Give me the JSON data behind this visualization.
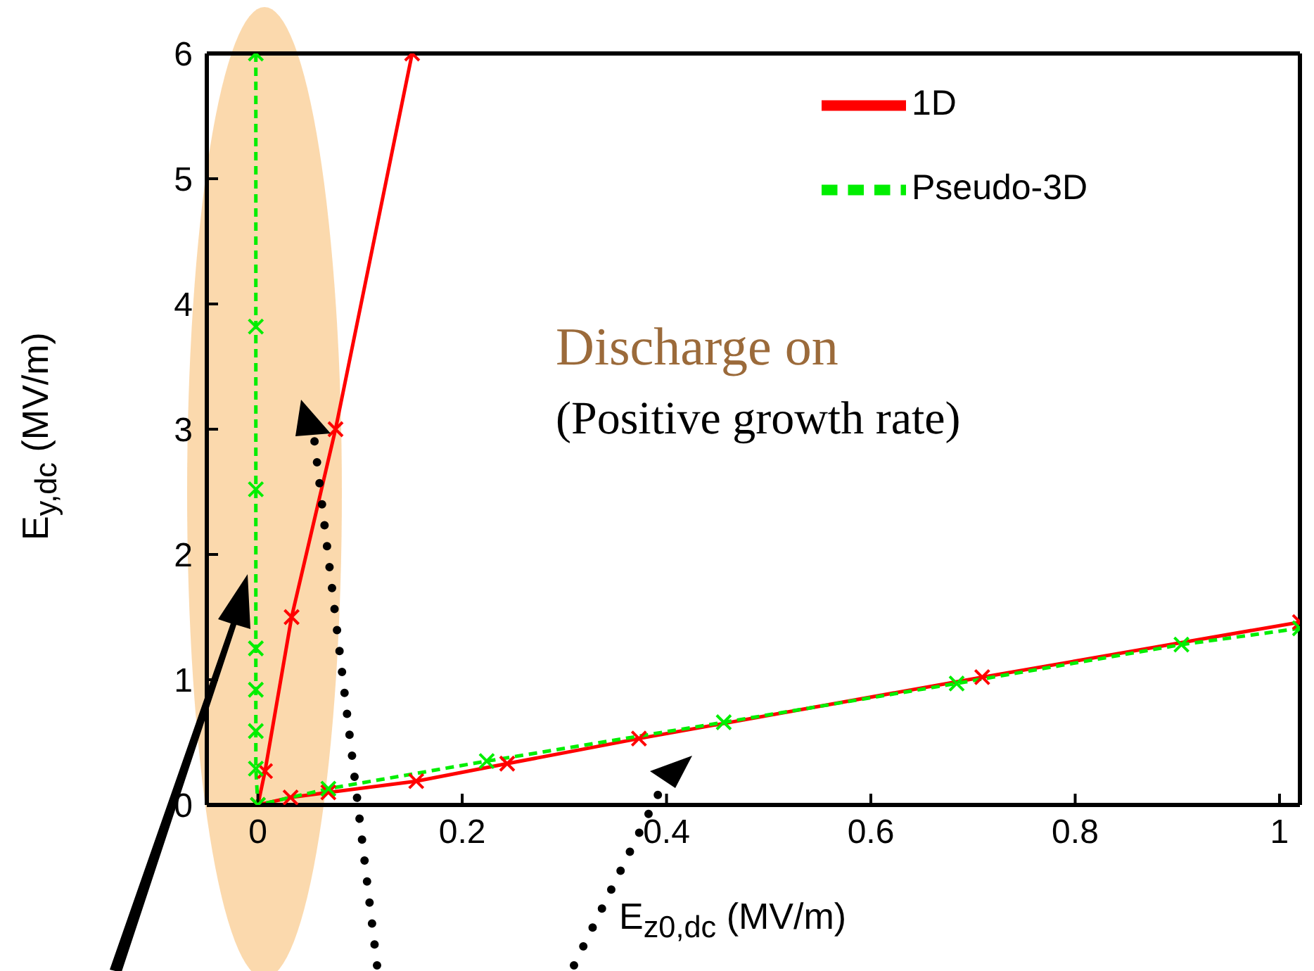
{
  "chart_data": {
    "type": "line",
    "xlabel": "E$_{z0,dc}$ (MV/m)",
    "ylabel": "E$_{y,dc}$ (MV/m)",
    "xlim": [
      -0.05,
      1.02
    ],
    "xticks": [
      0,
      0.2,
      0.4,
      0.6,
      0.8,
      1
    ],
    "ylim": [
      0,
      6
    ],
    "yticks": [
      0,
      1,
      2,
      3,
      4,
      5,
      6
    ],
    "legend": "top right",
    "marker": "cross",
    "annotations": [
      "Discharge on",
      "(Positive growth rate)"
    ],
    "series": [
      {
        "name": "1D",
        "color": "#ff0000",
        "line_style": "solid",
        "x": [
          0.151,
          0.076,
          0.033,
          0.007,
          0,
          0.032,
          0.069,
          0.155,
          0.244,
          0.373,
          0.709,
          1.02
        ],
        "values": [
          6,
          3,
          1.5,
          0.27,
          0,
          0.06,
          0.1,
          0.19,
          0.33,
          0.53,
          1.02,
          1.46
        ]
      },
      {
        "name": "Pseudo-3D",
        "color": "#00ee00",
        "line_style": "dashed",
        "x": [
          -0.002,
          -0.002,
          -0.002,
          -0.002,
          -0.002,
          -0.002,
          -0.002,
          0,
          0.069,
          0.224,
          0.456,
          0.684,
          0.904,
          1.02
        ],
        "values": [
          6,
          3.82,
          2.52,
          1.25,
          0.92,
          0.59,
          0.29,
          0,
          0.13,
          0.35,
          0.66,
          0.97,
          1.28,
          1.41
        ]
      }
    ]
  }
}
